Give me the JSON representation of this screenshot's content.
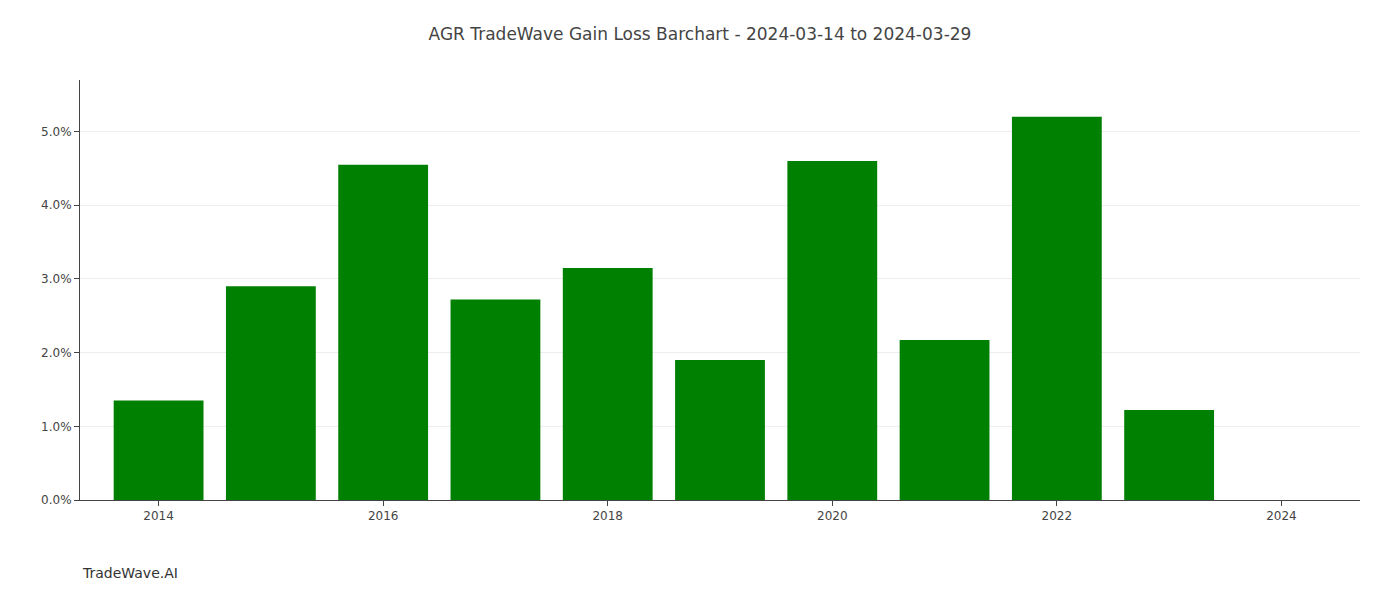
{
  "chart_data": {
    "type": "bar",
    "title": "AGR TradeWave Gain Loss Barchart - 2024-03-14 to 2024-03-29",
    "annotations": [
      "TradeWave.AI"
    ],
    "x": [
      2014,
      2015,
      2016,
      2017,
      2018,
      2019,
      2020,
      2021,
      2022,
      2023
    ],
    "values": [
      0.0135,
      0.029,
      0.0455,
      0.0272,
      0.0315,
      0.019,
      0.046,
      0.0217,
      0.052,
      0.0122
    ],
    "color": "#008000",
    "xlim": [
      2013.3,
      2024.7
    ],
    "xticks": [
      2014,
      2016,
      2018,
      2020,
      2022,
      2024
    ],
    "ylim": [
      0,
      0.057
    ],
    "yticks": [
      {
        "value": 0.0,
        "label": "0.0%"
      },
      {
        "value": 0.01,
        "label": "1.0%"
      },
      {
        "value": 0.02,
        "label": "2.0%"
      },
      {
        "value": 0.03,
        "label": "3.0%"
      },
      {
        "value": 0.04,
        "label": "4.0%"
      },
      {
        "value": 0.05,
        "label": "5.0%"
      }
    ],
    "grid": true
  }
}
